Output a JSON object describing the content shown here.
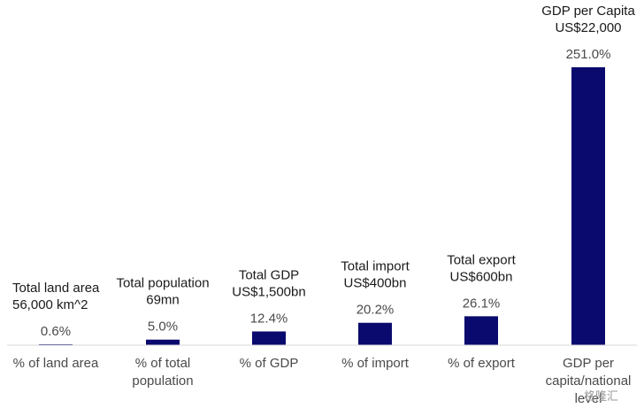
{
  "chart_data": {
    "type": "bar",
    "unit": "%",
    "bar_color": "#0a0a6e",
    "categories": [
      [
        "% of land area"
      ],
      [
        "% of total",
        "population"
      ],
      [
        "% of GDP"
      ],
      [
        "% of import"
      ],
      [
        "% of export"
      ],
      [
        "GDP per",
        "capita/national",
        "level"
      ]
    ],
    "values": [
      0.6,
      5.0,
      12.4,
      20.2,
      26.1,
      251.0
    ],
    "value_labels": [
      "0.6%",
      "5.0%",
      "12.4%",
      "20.2%",
      "26.1%",
      "251.0%"
    ],
    "annotations": [
      [
        "Total land area",
        "56,000 km^2"
      ],
      [
        "Total population",
        "69mn"
      ],
      [
        "Total GDP",
        "US$1,500bn"
      ],
      [
        "Total import",
        "US$400bn"
      ],
      [
        "Total export",
        "US$600bn"
      ],
      [
        "GDP per Capita",
        "US$22,000"
      ]
    ],
    "ylim": [
      0,
      251
    ],
    "grid": false,
    "legend": "none"
  },
  "watermark": "格隆汇"
}
